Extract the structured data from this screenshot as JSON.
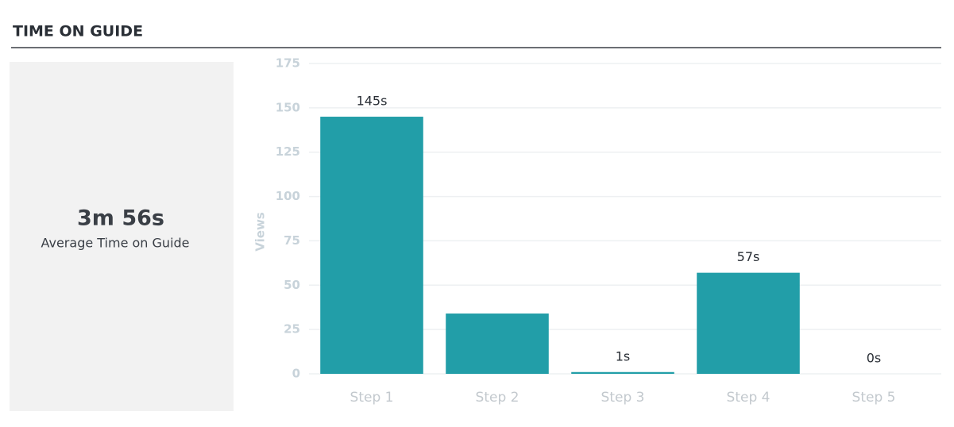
{
  "header": {
    "title": "TIME ON GUIDE"
  },
  "summary": {
    "value": "3m 56s",
    "label": "Average Time on Guide"
  },
  "chart_data": {
    "type": "bar",
    "y_label": "Views",
    "categories": [
      "Step 1",
      "Step 2",
      "Step 3",
      "Step 4",
      "Step 5"
    ],
    "values": [
      145,
      34,
      1,
      57,
      0
    ],
    "value_labels": [
      "145s",
      null,
      "1s",
      "57s",
      "0s"
    ],
    "color": "#229ea8",
    "ylim": [
      0,
      175
    ],
    "yticks": [
      0,
      25,
      50,
      75,
      100,
      125,
      150,
      175
    ],
    "grid": true
  }
}
